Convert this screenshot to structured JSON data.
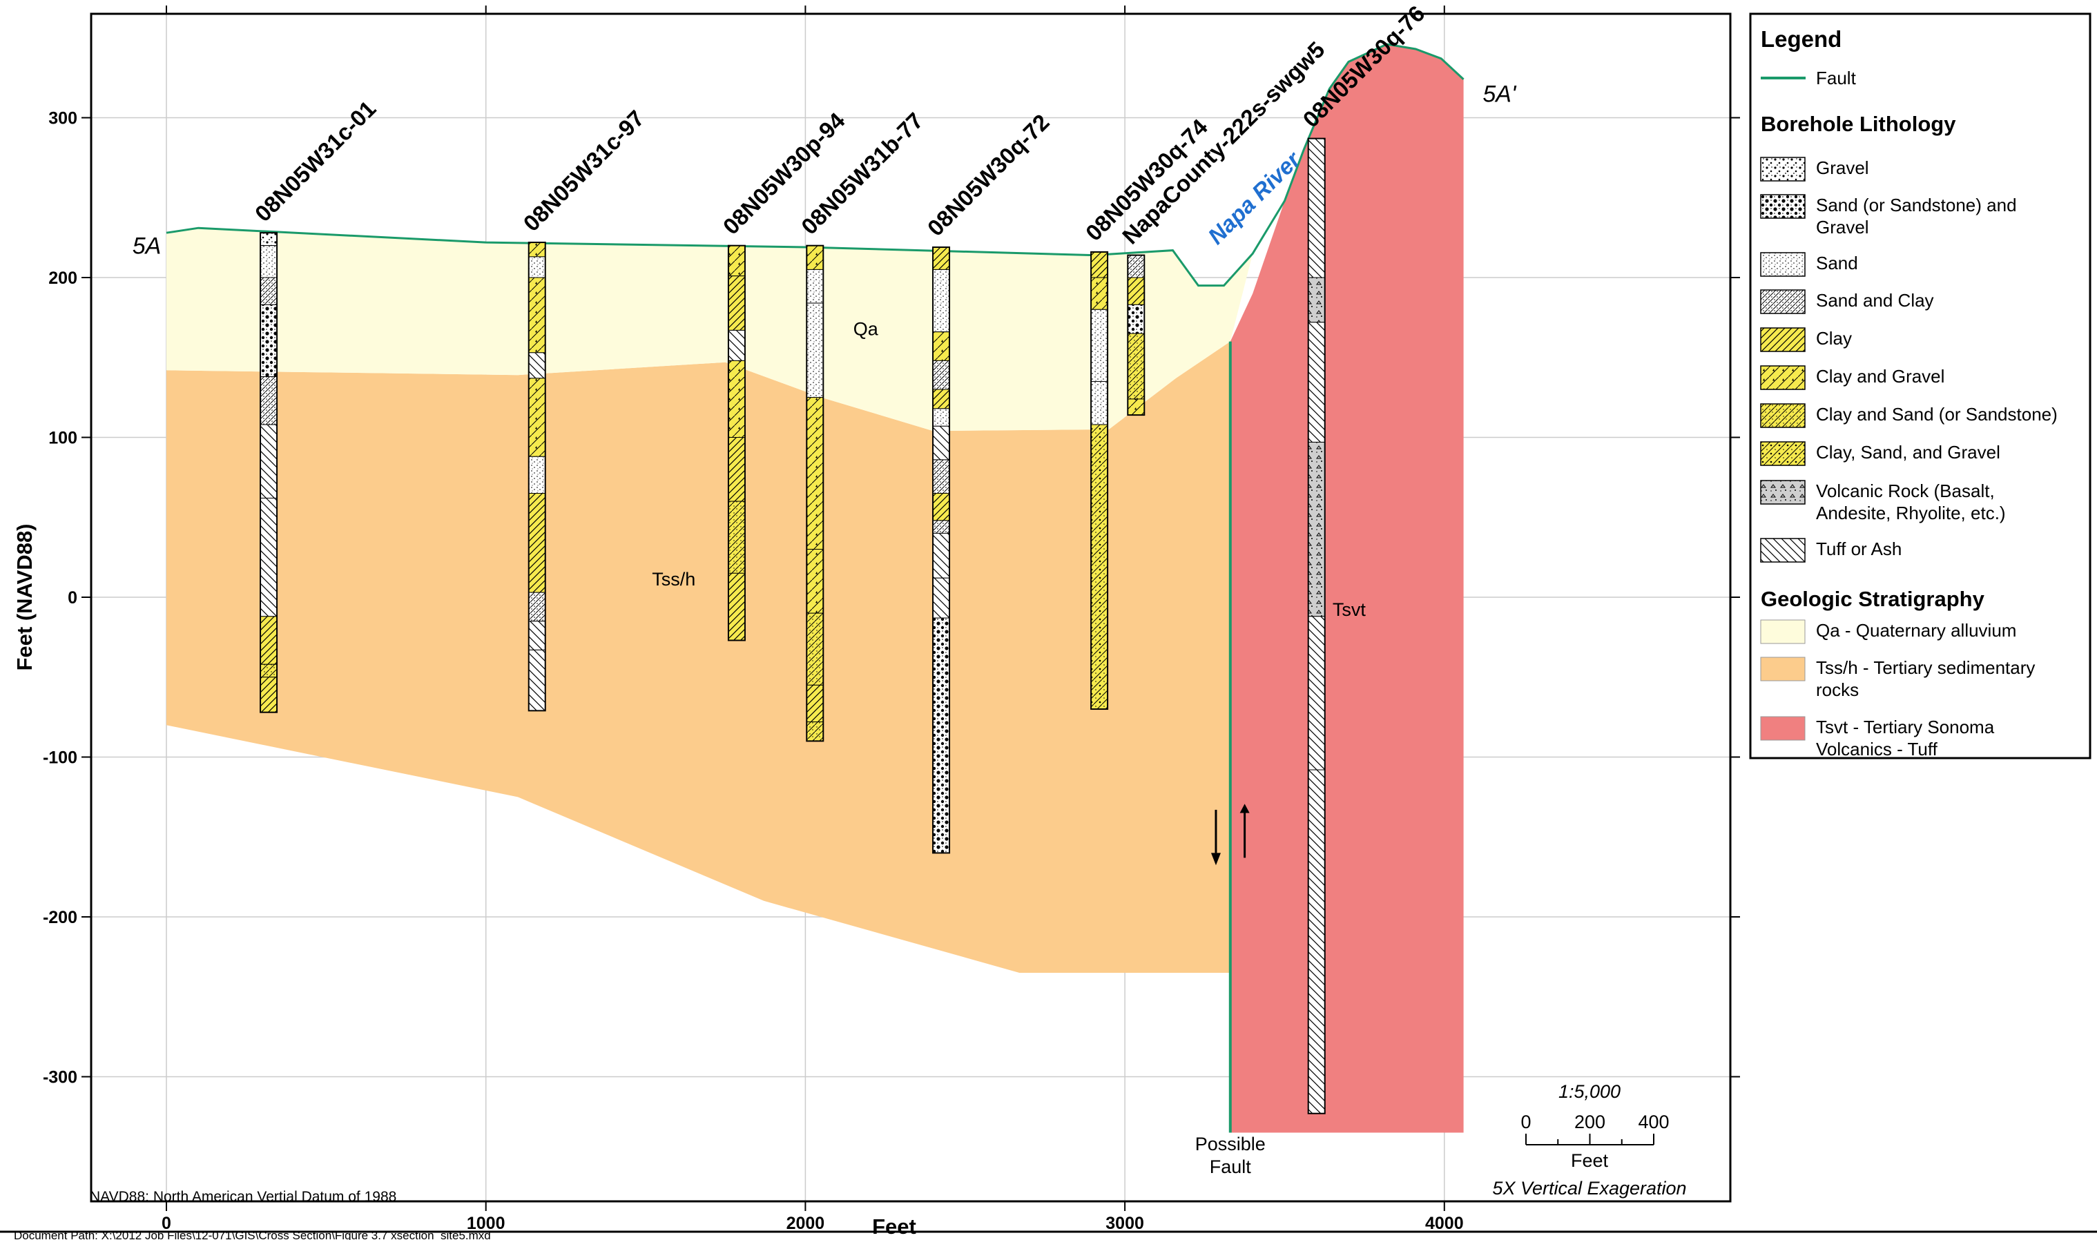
{
  "axes": {
    "ylabel": "Feet (NAVD88)",
    "xlabel": "Feet",
    "yticks": [
      "300",
      "200",
      "100",
      "0",
      "-100",
      "-200",
      "-300"
    ],
    "xticks": [
      "0",
      "1000",
      "2000",
      "3000",
      "4000"
    ]
  },
  "section_ends": {
    "left": "5A",
    "right": "5A'"
  },
  "units": {
    "qa": "Qa",
    "tss": "Tss/h",
    "tsvt": "Tsvt"
  },
  "river": "Napa River",
  "fault_label": [
    "Possible",
    "Fault"
  ],
  "boreholes": [
    {
      "name": "08N05W31c-01",
      "x": 320,
      "top": 228,
      "bottom": -72
    },
    {
      "name": "08N05W31c-97",
      "x": 1160,
      "top": 222,
      "bottom": -71
    },
    {
      "name": "08N05W30p-94",
      "x": 1785,
      "top": 220,
      "bottom": -27
    },
    {
      "name": "08N05W31b-77",
      "x": 2030,
      "top": 220,
      "bottom": -90
    },
    {
      "name": "08N05W30q-72",
      "x": 2425,
      "top": 219,
      "bottom": -160
    },
    {
      "name": "08N05W30q-74",
      "x": 2920,
      "top": 216,
      "bottom": -70
    },
    {
      "name": "NapaCounty-222s-swgw5",
      "x": 3035,
      "top": 214,
      "bottom": 114
    },
    {
      "name": "08N05W30q-76",
      "x": 3600,
      "top": 287,
      "bottom": -323
    }
  ],
  "scale": {
    "ratio": "1:5,000",
    "ticks": [
      "0",
      "200",
      "400"
    ],
    "unit": "Feet",
    "exaggeration": "5X Vertical Exageration"
  },
  "datum_note": "NAVD88: North American Vertial Datum of 1988",
  "doc_path": "Document Path: X:\\2012 Job Files\\12-071\\GIS\\Cross Section\\Figure 3.7 xsection_site5.mxd",
  "legend": {
    "title": "Legend",
    "fault": "Fault",
    "lithology_heading": "Borehole Lithology",
    "lithology": [
      [
        "Gravel"
      ],
      [
        "Sand (or Sandstone) and",
        "Gravel"
      ],
      [
        "Sand"
      ],
      [
        "Sand and Clay"
      ],
      [
        "Clay"
      ],
      [
        "Clay and Gravel"
      ],
      [
        "Clay and Sand (or Sandstone)"
      ],
      [
        "Clay, Sand, and Gravel"
      ],
      [
        "Volcanic Rock (Basalt,",
        "Andesite, Rhyolite, etc.)"
      ],
      [
        "Tuff or Ash"
      ]
    ],
    "strat_heading": "Geologic Stratigraphy",
    "strat": [
      [
        "Qa - Quaternary alluvium"
      ],
      [
        "Tss/h - Tertiary sedimentary",
        "rocks"
      ],
      [
        "Tsvt - Tertiary Sonoma",
        "Volcanics - Tuff"
      ]
    ]
  },
  "colors": {
    "qa": "#fefcdc",
    "tss": "#fccc8c",
    "tsvt": "#f08080",
    "fault": "#1a9a6a",
    "river": "#1f6fd0",
    "clay": "#f6ea4e"
  }
}
